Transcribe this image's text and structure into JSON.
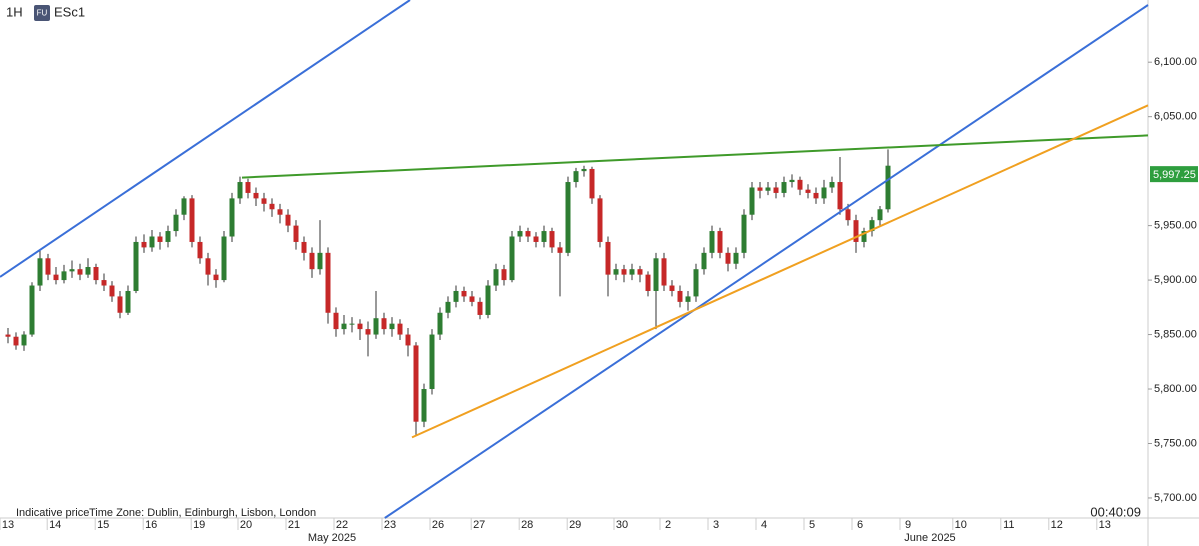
{
  "header": {
    "interval": "1H",
    "badge": "FU",
    "symbol": "ESc1"
  },
  "footer": {
    "note": "Indicative price",
    "timezone": "Time Zone: Dublin, Edinburgh, Lisbon, London",
    "countdown": "00:40:09"
  },
  "chart_data": {
    "type": "candlestick",
    "up_color": "#2e7d32",
    "down_color": "#c62828",
    "xlim": [
      0,
      143.5
    ],
    "ylim": [
      5681.6,
      6157.1
    ],
    "yticks": [
      {
        "value": 5700,
        "label": "5,700.00"
      },
      {
        "value": 5750,
        "label": "5,750.00"
      },
      {
        "value": 5800,
        "label": "5,800.00"
      },
      {
        "value": 5850,
        "label": "5,850.00"
      },
      {
        "value": 5900,
        "label": "5,900.00"
      },
      {
        "value": 5950,
        "label": "5,950.00"
      },
      {
        "value": 6050,
        "label": "6,050.00"
      },
      {
        "value": 6100,
        "label": "6,100.00"
      }
    ],
    "xticks": [
      {
        "value": 1,
        "label": "13"
      },
      {
        "value": 6.9,
        "label": "14"
      },
      {
        "value": 12.9,
        "label": "15"
      },
      {
        "value": 18.9,
        "label": "16"
      },
      {
        "value": 24.9,
        "label": "19"
      },
      {
        "value": 30.75,
        "label": "20"
      },
      {
        "value": 36.75,
        "label": "21"
      },
      {
        "value": 42.75,
        "label": "22"
      },
      {
        "value": 48.75,
        "label": "23"
      },
      {
        "value": 54.75,
        "label": "26"
      },
      {
        "value": 59.9,
        "label": "27"
      },
      {
        "value": 65.9,
        "label": "28"
      },
      {
        "value": 71.9,
        "label": "29"
      },
      {
        "value": 77.75,
        "label": "30"
      },
      {
        "value": 83.5,
        "label": "2"
      },
      {
        "value": 89.5,
        "label": "3"
      },
      {
        "value": 95.5,
        "label": "4"
      },
      {
        "value": 101.5,
        "label": "5"
      },
      {
        "value": 107.5,
        "label": "6"
      },
      {
        "value": 113.5,
        "label": "9"
      },
      {
        "value": 120.1,
        "label": "10"
      },
      {
        "value": 126.1,
        "label": "11"
      },
      {
        "value": 132.1,
        "label": "12"
      },
      {
        "value": 138.1,
        "label": "13"
      }
    ],
    "month_ticks": [
      {
        "value": 41.5,
        "label": "May 2025"
      },
      {
        "value": 116.25,
        "label": "June 2025"
      }
    ],
    "last_price": {
      "value": 5997.25,
      "label": "5,997.25",
      "color": "#2e9e3e"
    },
    "trendlines": [
      {
        "color": "#3a6fd8",
        "x": [
          0,
          51.25
        ],
        "y": [
          5902.9,
          6157.1
        ]
      },
      {
        "color": "#3a6fd8",
        "x": [
          48.1,
          143.5
        ],
        "y": [
          5681.6,
          6152.5
        ]
      },
      {
        "color": "#3f9a2a",
        "x": [
          30.25,
          143.5
        ],
        "y": [
          5994.1,
          6032.8
        ]
      },
      {
        "color": "#f0a020",
        "x": [
          51.5,
          143.5
        ],
        "y": [
          5755.6,
          6060.4
        ]
      }
    ],
    "x": [
      1,
      2,
      3,
      4,
      5,
      6,
      7,
      8,
      9,
      10,
      11,
      12,
      13,
      14,
      15,
      16,
      17,
      18,
      19,
      20,
      21,
      22,
      23,
      24,
      25,
      26,
      27,
      28,
      29,
      30,
      31,
      32,
      33,
      34,
      35,
      36,
      37,
      38,
      39,
      40,
      41,
      42,
      43,
      44,
      45,
      46,
      47,
      48,
      49,
      50,
      51,
      52,
      53,
      54,
      55,
      56,
      57,
      58,
      59,
      60,
      61,
      62,
      63,
      64,
      65,
      66,
      67,
      68,
      69,
      70,
      71,
      72,
      73,
      74,
      75,
      76,
      77,
      78,
      79,
      80,
      81,
      82,
      83,
      84,
      85,
      86,
      87,
      88,
      89,
      90,
      91,
      92,
      93,
      94,
      95,
      96,
      97,
      98,
      99,
      100,
      101,
      102,
      103,
      104,
      105,
      106,
      107,
      108,
      109,
      110,
      111
    ],
    "candles": [
      [
        5850,
        5856,
        5842,
        5848
      ],
      [
        5848,
        5852,
        5836,
        5840
      ],
      [
        5840,
        5853,
        5835,
        5850
      ],
      [
        5850,
        5898,
        5848,
        5895
      ],
      [
        5895,
        5928,
        5890,
        5920
      ],
      [
        5920,
        5924,
        5900,
        5905
      ],
      [
        5905,
        5912,
        5896,
        5900
      ],
      [
        5900,
        5914,
        5897,
        5908
      ],
      [
        5908,
        5918,
        5902,
        5910
      ],
      [
        5910,
        5915,
        5900,
        5905
      ],
      [
        5905,
        5920,
        5902,
        5912
      ],
      [
        5912,
        5915,
        5896,
        5900
      ],
      [
        5900,
        5906,
        5890,
        5895
      ],
      [
        5895,
        5899,
        5880,
        5885
      ],
      [
        5885,
        5890,
        5865,
        5870
      ],
      [
        5870,
        5895,
        5868,
        5890
      ],
      [
        5890,
        5940,
        5888,
        5935
      ],
      [
        5935,
        5942,
        5925,
        5930
      ],
      [
        5930,
        5946,
        5926,
        5940
      ],
      [
        5940,
        5944,
        5928,
        5935
      ],
      [
        5935,
        5950,
        5930,
        5945
      ],
      [
        5945,
        5965,
        5940,
        5960
      ],
      [
        5960,
        5977,
        5955,
        5975
      ],
      [
        5975,
        5978,
        5930,
        5935
      ],
      [
        5935,
        5940,
        5915,
        5920
      ],
      [
        5920,
        5925,
        5895,
        5905
      ],
      [
        5905,
        5910,
        5893,
        5900
      ],
      [
        5900,
        5945,
        5898,
        5940
      ],
      [
        5940,
        5980,
        5935,
        5975
      ],
      [
        5975,
        5995,
        5970,
        5990
      ],
      [
        5990,
        5993,
        5975,
        5980
      ],
      [
        5980,
        5985,
        5968,
        5975
      ],
      [
        5975,
        5980,
        5963,
        5970
      ],
      [
        5970,
        5975,
        5958,
        5965
      ],
      [
        5965,
        5970,
        5952,
        5960
      ],
      [
        5960,
        5965,
        5944,
        5950
      ],
      [
        5950,
        5955,
        5928,
        5935
      ],
      [
        5935,
        5940,
        5918,
        5925
      ],
      [
        5925,
        5930,
        5902,
        5910
      ],
      [
        5910,
        5955,
        5905,
        5925
      ],
      [
        5925,
        5930,
        5860,
        5870
      ],
      [
        5870,
        5875,
        5848,
        5855
      ],
      [
        5855,
        5868,
        5850,
        5860
      ],
      [
        5860,
        5866,
        5852,
        5860
      ],
      [
        5860,
        5864,
        5845,
        5855
      ],
      [
        5855,
        5862,
        5830,
        5850
      ],
      [
        5850,
        5890,
        5846,
        5865
      ],
      [
        5865,
        5870,
        5850,
        5855
      ],
      [
        5855,
        5866,
        5848,
        5860
      ],
      [
        5860,
        5864,
        5845,
        5850
      ],
      [
        5850,
        5856,
        5830,
        5840
      ],
      [
        5840,
        5843,
        5757,
        5770
      ],
      [
        5770,
        5805,
        5765,
        5800
      ],
      [
        5800,
        5855,
        5795,
        5850
      ],
      [
        5850,
        5875,
        5845,
        5870
      ],
      [
        5870,
        5885,
        5865,
        5880
      ],
      [
        5880,
        5895,
        5875,
        5890
      ],
      [
        5890,
        5894,
        5880,
        5885
      ],
      [
        5885,
        5890,
        5876,
        5880
      ],
      [
        5880,
        5884,
        5864,
        5868
      ],
      [
        5868,
        5900,
        5865,
        5895
      ],
      [
        5895,
        5915,
        5890,
        5910
      ],
      [
        5910,
        5914,
        5895,
        5900
      ],
      [
        5900,
        5945,
        5898,
        5940
      ],
      [
        5940,
        5950,
        5935,
        5945
      ],
      [
        5945,
        5948,
        5935,
        5940
      ],
      [
        5940,
        5944,
        5930,
        5935
      ],
      [
        5935,
        5950,
        5930,
        5945
      ],
      [
        5945,
        5948,
        5925,
        5930
      ],
      [
        5930,
        5935,
        5885,
        5925
      ],
      [
        5925,
        5995,
        5922,
        5990
      ],
      [
        5990,
        6003,
        5985,
        6000
      ],
      [
        6000,
        6005,
        5995,
        6002
      ],
      [
        6002,
        6004,
        5970,
        5975
      ],
      [
        5975,
        5978,
        5930,
        5935
      ],
      [
        5935,
        5940,
        5885,
        5905
      ],
      [
        5905,
        5915,
        5900,
        5910
      ],
      [
        5910,
        5914,
        5898,
        5905
      ],
      [
        5905,
        5915,
        5900,
        5910
      ],
      [
        5910,
        5913,
        5898,
        5905
      ],
      [
        5905,
        5908,
        5885,
        5890
      ],
      [
        5890,
        5925,
        5855,
        5920
      ],
      [
        5920,
        5925,
        5890,
        5895
      ],
      [
        5895,
        5900,
        5885,
        5890
      ],
      [
        5890,
        5895,
        5875,
        5880
      ],
      [
        5880,
        5890,
        5872,
        5885
      ],
      [
        5885,
        5915,
        5880,
        5910
      ],
      [
        5910,
        5930,
        5905,
        5925
      ],
      [
        5925,
        5950,
        5920,
        5945
      ],
      [
        5945,
        5948,
        5920,
        5925
      ],
      [
        5925,
        5930,
        5908,
        5915
      ],
      [
        5915,
        5930,
        5910,
        5925
      ],
      [
        5925,
        5965,
        5920,
        5960
      ],
      [
        5960,
        5990,
        5955,
        5985
      ],
      [
        5985,
        5990,
        5975,
        5982
      ],
      [
        5982,
        5990,
        5978,
        5985
      ],
      [
        5985,
        5990,
        5975,
        5980
      ],
      [
        5980,
        5995,
        5976,
        5990
      ],
      [
        5990,
        5997,
        5985,
        5992
      ],
      [
        5992,
        5995,
        5978,
        5983
      ],
      [
        5983,
        5988,
        5975,
        5980
      ],
      [
        5980,
        5985,
        5970,
        5975
      ],
      [
        5975,
        5992,
        5970,
        5985
      ],
      [
        5985,
        5995,
        5980,
        5990
      ],
      [
        5990,
        6013,
        5960,
        5965
      ],
      [
        5965,
        5970,
        5950,
        5955
      ],
      [
        5955,
        5960,
        5925,
        5935
      ],
      [
        5935,
        5948,
        5930,
        5945
      ],
      [
        5945,
        5958,
        5940,
        5955
      ],
      [
        5955,
        5968,
        5950,
        5965
      ],
      [
        5965,
        6020,
        5962,
        6005
      ]
    ]
  }
}
